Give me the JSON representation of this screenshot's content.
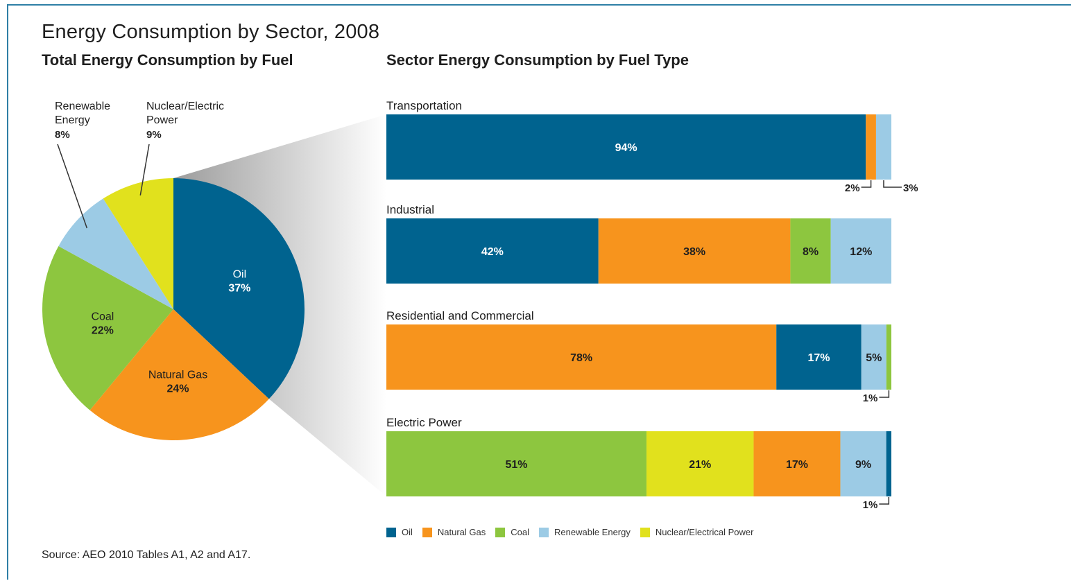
{
  "title": "Energy Consumption by Sector, 2008",
  "left_subtitle": "Total Energy Consumption by Fuel",
  "right_subtitle": "Sector Energy Consumption by Fuel Type",
  "source": "Source: AEO 2010 Tables A1, A2 and A17.",
  "colors": {
    "Oil": "#00638f",
    "Natural Gas": "#f7941d",
    "Coal": "#8dc63f",
    "Renewable Energy": "#9ccbe5",
    "Nuclear/Electrical Power": "#e1e11d"
  },
  "legend": [
    {
      "key": "Oil",
      "label": "Oil"
    },
    {
      "key": "Natural Gas",
      "label": "Natural Gas"
    },
    {
      "key": "Coal",
      "label": "Coal"
    },
    {
      "key": "Renewable Energy",
      "label": "Renewable Energy"
    },
    {
      "key": "Nuclear/Electrical Power",
      "label": "Nuclear/Electrical Power"
    }
  ],
  "chart_data": [
    {
      "type": "pie",
      "title": "Total Energy Consumption by Fuel",
      "slices": [
        {
          "key": "Oil",
          "name": "Oil",
          "value": 37,
          "label": "37%"
        },
        {
          "key": "Natural Gas",
          "name": "Natural Gas",
          "value": 24,
          "label": "24%"
        },
        {
          "key": "Coal",
          "name": "Coal",
          "value": 22,
          "label": "22%"
        },
        {
          "key": "Renewable Energy",
          "name": "Renewable Energy",
          "value": 8,
          "label": "8%"
        },
        {
          "key": "Nuclear/Electrical Power",
          "name": "Nuclear/Electric Power",
          "value": 9,
          "label": "9%"
        }
      ]
    },
    {
      "type": "bar",
      "orientation": "horizontal",
      "stacked": true,
      "title": "Sector Energy Consumption by Fuel Type",
      "sectors": [
        {
          "name": "Transportation",
          "segments": [
            {
              "key": "Oil",
              "value": 94,
              "label": "94%",
              "label_pos": "inside"
            },
            {
              "key": "Natural Gas",
              "value": 2,
              "label": "2%",
              "label_pos": "callout"
            },
            {
              "key": "Renewable Energy",
              "value": 3,
              "label": "3%",
              "label_pos": "callout"
            }
          ]
        },
        {
          "name": "Industrial",
          "segments": [
            {
              "key": "Oil",
              "value": 42,
              "label": "42%",
              "label_pos": "inside"
            },
            {
              "key": "Natural Gas",
              "value": 38,
              "label": "38%",
              "label_pos": "inside"
            },
            {
              "key": "Coal",
              "value": 8,
              "label": "8%",
              "label_pos": "inside"
            },
            {
              "key": "Renewable Energy",
              "value": 12,
              "label": "12%",
              "label_pos": "inside"
            }
          ]
        },
        {
          "name": "Residential and Commercial",
          "segments": [
            {
              "key": "Natural Gas",
              "value": 78,
              "label": "78%",
              "label_pos": "inside"
            },
            {
              "key": "Oil",
              "value": 17,
              "label": "17%",
              "label_pos": "inside"
            },
            {
              "key": "Renewable Energy",
              "value": 5,
              "label": "5%",
              "label_pos": "inside"
            },
            {
              "key": "Coal",
              "value": 1,
              "label": "1%",
              "label_pos": "callout"
            }
          ]
        },
        {
          "name": "Electric Power",
          "segments": [
            {
              "key": "Coal",
              "value": 51,
              "label": "51%",
              "label_pos": "inside"
            },
            {
              "key": "Nuclear/Electrical Power",
              "value": 21,
              "label": "21%",
              "label_pos": "inside"
            },
            {
              "key": "Natural Gas",
              "value": 17,
              "label": "17%",
              "label_pos": "inside"
            },
            {
              "key": "Renewable Energy",
              "value": 9,
              "label": "9%",
              "label_pos": "inside"
            },
            {
              "key": "Oil",
              "value": 1,
              "label": "1%",
              "label_pos": "callout"
            }
          ]
        }
      ]
    }
  ]
}
